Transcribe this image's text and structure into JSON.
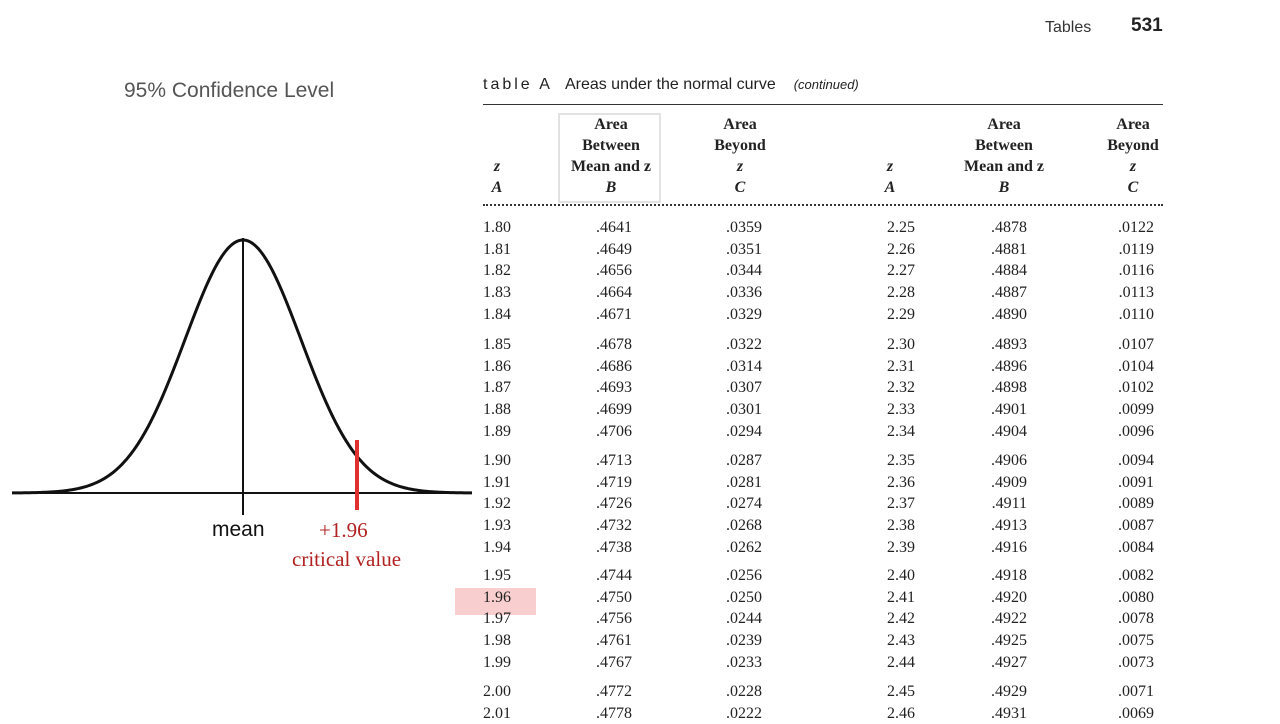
{
  "header": {
    "section": "Tables",
    "page_number": "531"
  },
  "figure": {
    "title": "95% Confidence Level",
    "mean_label": "mean",
    "critical_value": "+1.96",
    "critical_label": "critical value",
    "colors": {
      "curve": "#111111",
      "critical_marker": "#e03030",
      "critical_text": "#b22222",
      "highlight": "#f8cece"
    }
  },
  "table": {
    "tag": "table A",
    "title": "Areas under the normal curve",
    "continued": "(continued)",
    "columns": [
      {
        "lines": [
          "",
          "",
          "z"
        ],
        "letter": "A"
      },
      {
        "lines": [
          "Area",
          "Between",
          "Mean and z"
        ],
        "letter": "B"
      },
      {
        "lines": [
          "",
          "Area",
          "Beyond",
          "z"
        ],
        "letter": "C"
      },
      {
        "lines": [
          "",
          "",
          "z"
        ],
        "letter": "A"
      },
      {
        "lines": [
          "Area",
          "Between",
          "Mean and z"
        ],
        "letter": "B"
      },
      {
        "lines": [
          "",
          "Area",
          "Beyond",
          "z"
        ],
        "letter": "C"
      }
    ],
    "highlighted_z": "1.96",
    "left_groups": [
      [
        [
          "1.80",
          ".4641",
          ".0359"
        ],
        [
          "1.81",
          ".4649",
          ".0351"
        ],
        [
          "1.82",
          ".4656",
          ".0344"
        ],
        [
          "1.83",
          ".4664",
          ".0336"
        ],
        [
          "1.84",
          ".4671",
          ".0329"
        ]
      ],
      [
        [
          "1.85",
          ".4678",
          ".0322"
        ],
        [
          "1.86",
          ".4686",
          ".0314"
        ],
        [
          "1.87",
          ".4693",
          ".0307"
        ],
        [
          "1.88",
          ".4699",
          ".0301"
        ],
        [
          "1.89",
          ".4706",
          ".0294"
        ]
      ],
      [
        [
          "1.90",
          ".4713",
          ".0287"
        ],
        [
          "1.91",
          ".4719",
          ".0281"
        ],
        [
          "1.92",
          ".4726",
          ".0274"
        ],
        [
          "1.93",
          ".4732",
          ".0268"
        ],
        [
          "1.94",
          ".4738",
          ".0262"
        ]
      ],
      [
        [
          "1.95",
          ".4744",
          ".0256"
        ],
        [
          "1.96",
          ".4750",
          ".0250"
        ],
        [
          "1.97",
          ".4756",
          ".0244"
        ],
        [
          "1.98",
          ".4761",
          ".0239"
        ],
        [
          "1.99",
          ".4767",
          ".0233"
        ]
      ],
      [
        [
          "2.00",
          ".4772",
          ".0228"
        ],
        [
          "2.01",
          ".4778",
          ".0222"
        ]
      ]
    ],
    "right_groups": [
      [
        [
          "2.25",
          ".4878",
          ".0122"
        ],
        [
          "2.26",
          ".4881",
          ".0119"
        ],
        [
          "2.27",
          ".4884",
          ".0116"
        ],
        [
          "2.28",
          ".4887",
          ".0113"
        ],
        [
          "2.29",
          ".4890",
          ".0110"
        ]
      ],
      [
        [
          "2.30",
          ".4893",
          ".0107"
        ],
        [
          "2.31",
          ".4896",
          ".0104"
        ],
        [
          "2.32",
          ".4898",
          ".0102"
        ],
        [
          "2.33",
          ".4901",
          ".0099"
        ],
        [
          "2.34",
          ".4904",
          ".0096"
        ]
      ],
      [
        [
          "2.35",
          ".4906",
          ".0094"
        ],
        [
          "2.36",
          ".4909",
          ".0091"
        ],
        [
          "2.37",
          ".4911",
          ".0089"
        ],
        [
          "2.38",
          ".4913",
          ".0087"
        ],
        [
          "2.39",
          ".4916",
          ".0084"
        ]
      ],
      [
        [
          "2.40",
          ".4918",
          ".0082"
        ],
        [
          "2.41",
          ".4920",
          ".0080"
        ],
        [
          "2.42",
          ".4922",
          ".0078"
        ],
        [
          "2.43",
          ".4925",
          ".0075"
        ],
        [
          "2.44",
          ".4927",
          ".0073"
        ]
      ],
      [
        [
          "2.45",
          ".4929",
          ".0071"
        ],
        [
          "2.46",
          ".4931",
          ".0069"
        ]
      ]
    ]
  }
}
